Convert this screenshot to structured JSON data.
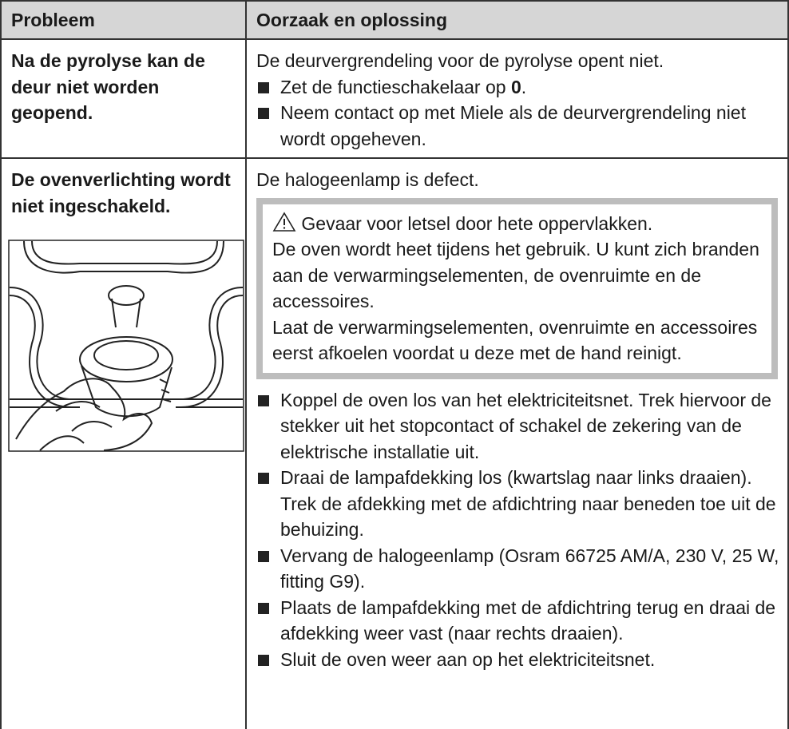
{
  "table": {
    "header": [
      "Probleem",
      "Oorzaak en oplossing"
    ],
    "rows": [
      {
        "problem": "Na de pyrolyse kan de deur niet worden geopend.",
        "cause": "De deurvergrendeling voor de pyrolyse opent niet.",
        "steps": [
          {
            "text": "Zet de functieschakelaar op",
            "bold": "0",
            "after": "."
          },
          {
            "text": "Neem contact op met Miele als de deurvergrendeling niet wordt opgeheven."
          }
        ]
      },
      {
        "problem": "De ovenverlichting wordt niet ingeschakeld.",
        "cause": "De halogeenlamp is defect.",
        "warning": {
          "title": "Gevaar voor letsel door hete oppervlakken.",
          "lines": [
            "De oven wordt heet tijdens het gebruik. U kunt zich branden aan de verwarmingselementen, de ovenruimte en de accessoires.",
            "Laat de verwarmingselementen, ovenruimte en accessoires eerst afkoelen voordat u deze met de hand reinigt."
          ]
        },
        "steps": [
          {
            "text": "Koppel de oven los van het elektriciteitsnet. Trek hiervoor de stekker uit het stopcontact of schakel de zekering van de elektrische installatie uit."
          },
          {
            "text": "Draai de lampafdekking los (kwartslag naar links draaien). Trek de afdekking met de afdichtring naar beneden toe uit de behuizing."
          },
          {
            "text": "Vervang de halogeenlamp (Osram 66725 AM/A, 230 V, 25 W, fitting G9)."
          },
          {
            "text": "Plaats de lampafdekking met de afdichtring terug en draai de afdekking weer vast (naar rechts draaien)."
          },
          {
            "text": "Sluit de oven weer aan op het elektriciteitsnet."
          }
        ]
      }
    ]
  }
}
